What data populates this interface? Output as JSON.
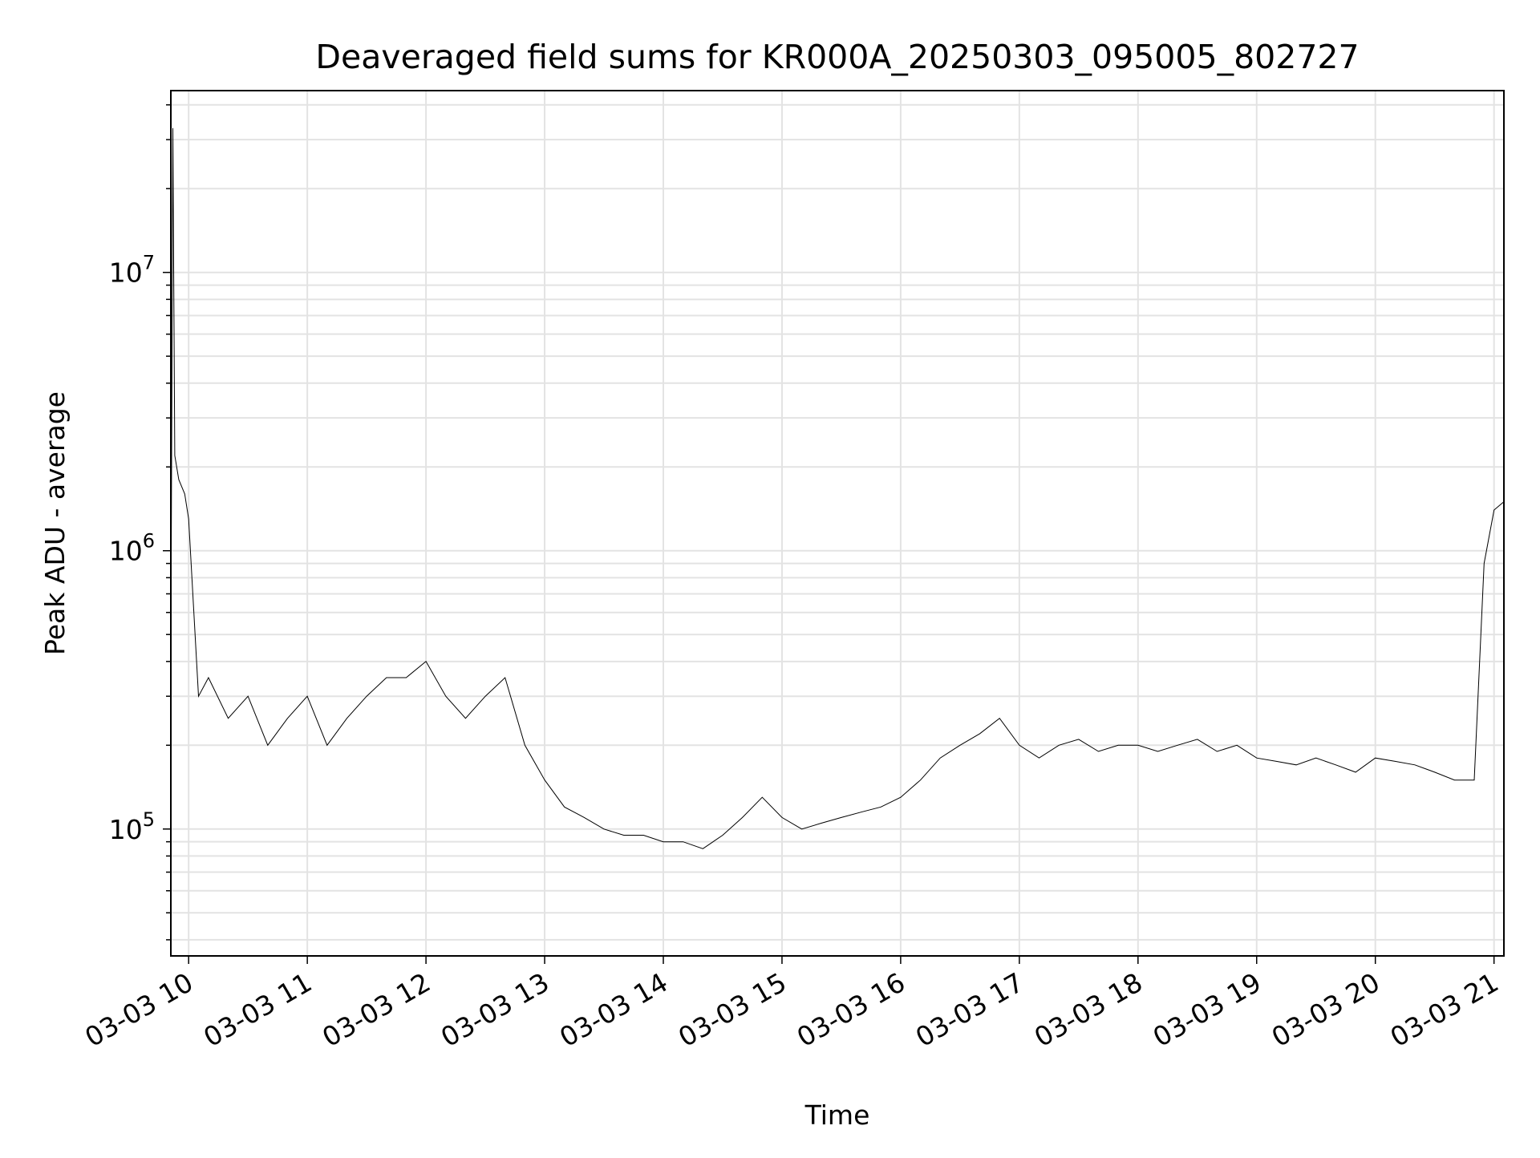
{
  "chart_data": {
    "type": "line",
    "title": "Deaveraged field sums for KR000A_20250303_095005_802727",
    "xlabel": "Time",
    "ylabel": "Peak ADU - average",
    "y_scale": "log",
    "grid": true,
    "grid_minor": true,
    "legend": "none",
    "x_range": [
      "2025-03-03 09:51",
      "2025-03-03 21:05"
    ],
    "ylim": [
      35000,
      45000000
    ],
    "x_ticks": [
      "03-03 10",
      "03-03 11",
      "03-03 12",
      "03-03 13",
      "03-03 14",
      "03-03 15",
      "03-03 16",
      "03-03 17",
      "03-03 18",
      "03-03 19",
      "03-03 20",
      "03-03 21"
    ],
    "x_tick_times": [
      "2025-03-03 10:00",
      "2025-03-03 11:00",
      "2025-03-03 12:00",
      "2025-03-03 13:00",
      "2025-03-03 14:00",
      "2025-03-03 15:00",
      "2025-03-03 16:00",
      "2025-03-03 17:00",
      "2025-03-03 18:00",
      "2025-03-03 19:00",
      "2025-03-03 20:00",
      "2025-03-03 21:00"
    ],
    "y_ticks": [
      {
        "value": 100000,
        "base": "10",
        "exp": "5"
      },
      {
        "value": 1000000,
        "base": "10",
        "exp": "6"
      },
      {
        "value": 10000000,
        "base": "10",
        "exp": "7"
      }
    ],
    "line_color": "#000000",
    "series": [
      {
        "x": [
          "2025-03-03 09:51",
          "2025-03-03 09:52",
          "2025-03-03 09:53",
          "2025-03-03 09:55",
          "2025-03-03 09:58",
          "2025-03-03 10:00",
          "2025-03-03 10:05",
          "2025-03-03 10:10",
          "2025-03-03 10:20",
          "2025-03-03 10:30",
          "2025-03-03 10:40",
          "2025-03-03 10:50",
          "2025-03-03 11:00",
          "2025-03-03 11:10",
          "2025-03-03 11:20",
          "2025-03-03 11:30",
          "2025-03-03 11:40",
          "2025-03-03 11:50",
          "2025-03-03 12:00",
          "2025-03-03 12:10",
          "2025-03-03 12:20",
          "2025-03-03 12:30",
          "2025-03-03 12:40",
          "2025-03-03 12:50",
          "2025-03-03 13:00",
          "2025-03-03 13:10",
          "2025-03-03 13:20",
          "2025-03-03 13:30",
          "2025-03-03 13:40",
          "2025-03-03 13:50",
          "2025-03-03 14:00",
          "2025-03-03 14:10",
          "2025-03-03 14:20",
          "2025-03-03 14:30",
          "2025-03-03 14:40",
          "2025-03-03 14:50",
          "2025-03-03 15:00",
          "2025-03-03 15:10",
          "2025-03-03 15:20",
          "2025-03-03 15:30",
          "2025-03-03 15:40",
          "2025-03-03 15:50",
          "2025-03-03 16:00",
          "2025-03-03 16:10",
          "2025-03-03 16:20",
          "2025-03-03 16:30",
          "2025-03-03 16:40",
          "2025-03-03 16:50",
          "2025-03-03 17:00",
          "2025-03-03 17:10",
          "2025-03-03 17:20",
          "2025-03-03 17:30",
          "2025-03-03 17:40",
          "2025-03-03 17:50",
          "2025-03-03 18:00",
          "2025-03-03 18:10",
          "2025-03-03 18:20",
          "2025-03-03 18:30",
          "2025-03-03 18:40",
          "2025-03-03 18:50",
          "2025-03-03 19:00",
          "2025-03-03 19:10",
          "2025-03-03 19:20",
          "2025-03-03 19:30",
          "2025-03-03 19:40",
          "2025-03-03 19:50",
          "2025-03-03 20:00",
          "2025-03-03 20:10",
          "2025-03-03 20:20",
          "2025-03-03 20:30",
          "2025-03-03 20:40",
          "2025-03-03 20:50",
          "2025-03-03 20:55",
          "2025-03-03 21:00",
          "2025-03-03 21:05"
        ],
        "y": [
          400000,
          33000000,
          2200000,
          1800000,
          1600000,
          1300000,
          300000,
          350000,
          250000,
          300000,
          200000,
          250000,
          300000,
          200000,
          250000,
          300000,
          350000,
          350000,
          400000,
          300000,
          250000,
          300000,
          350000,
          200000,
          150000,
          120000,
          110000,
          100000,
          95000,
          95000,
          90000,
          90000,
          85000,
          95000,
          110000,
          130000,
          110000,
          100000,
          105000,
          110000,
          115000,
          120000,
          130000,
          150000,
          180000,
          200000,
          220000,
          250000,
          200000,
          180000,
          200000,
          210000,
          190000,
          200000,
          200000,
          190000,
          200000,
          210000,
          190000,
          200000,
          180000,
          175000,
          170000,
          180000,
          170000,
          160000,
          180000,
          175000,
          170000,
          160000,
          150000,
          150000,
          900000,
          1400000,
          1500000
        ]
      }
    ]
  }
}
